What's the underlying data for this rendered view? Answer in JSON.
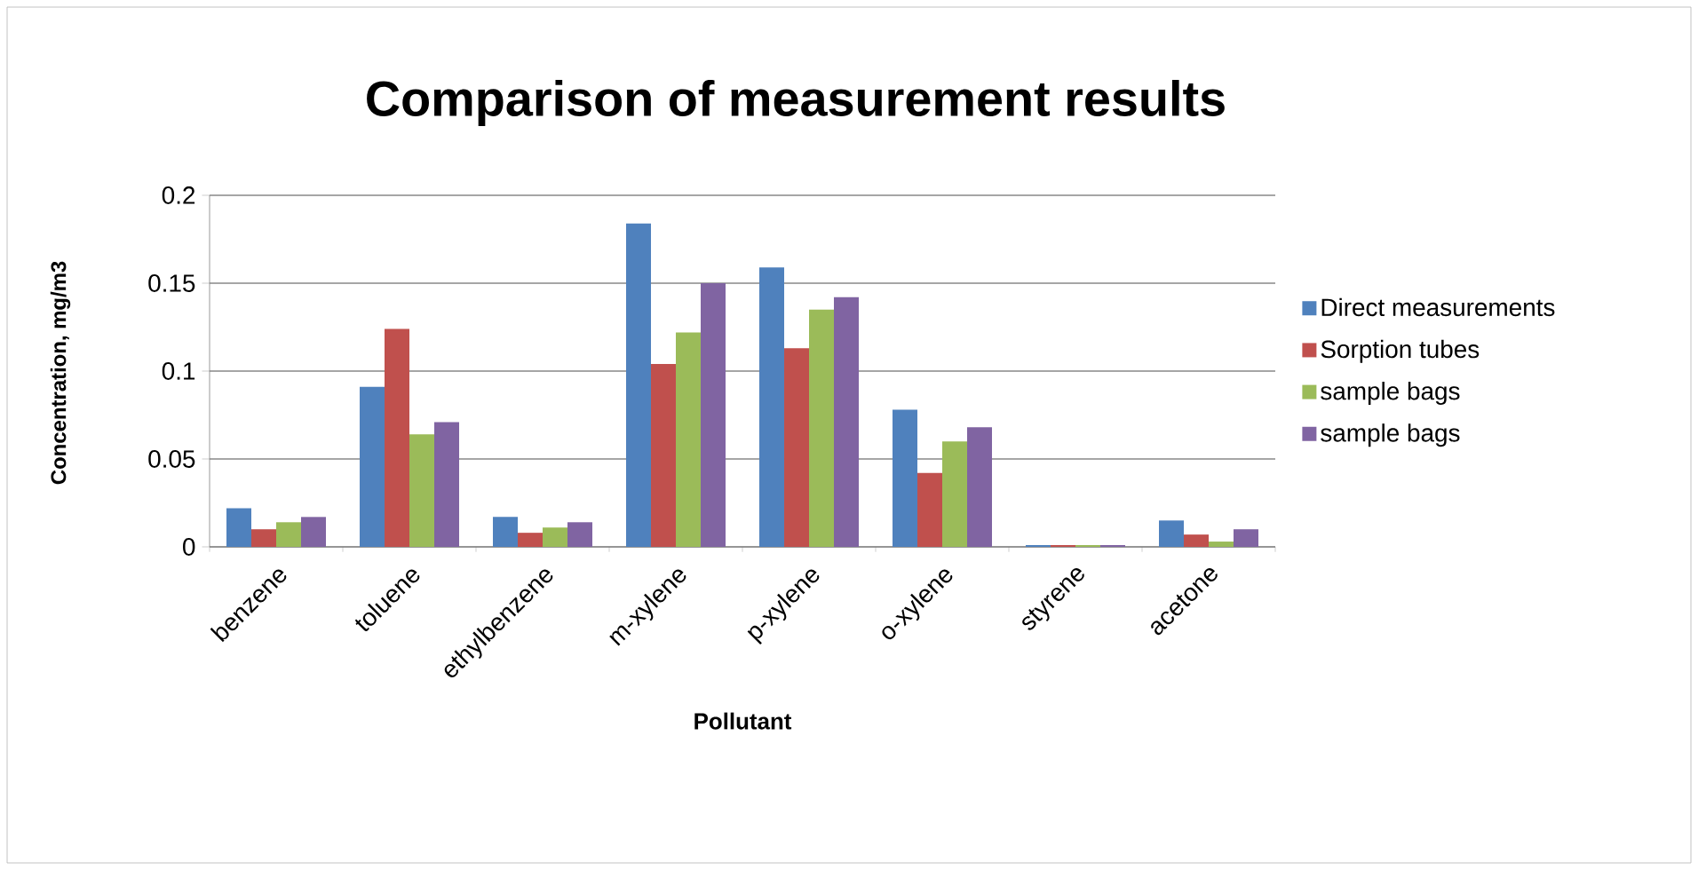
{
  "chart_data": {
    "type": "bar",
    "title": "Comparison of measurement results",
    "xlabel": "Pollutant",
    "ylabel": "Concentration, mg/m3",
    "categories": [
      "benzene",
      "toluene",
      "ethylbenzene",
      "m-xylene",
      "p-xylene",
      "o-xylene",
      "styrene",
      "acetone"
    ],
    "series": [
      {
        "name": "Direct measurements",
        "color": "#4f81bd",
        "values": [
          0.022,
          0.091,
          0.017,
          0.184,
          0.159,
          0.078,
          0.001,
          0.015
        ]
      },
      {
        "name": "Sorption tubes",
        "color": "#c0504d",
        "values": [
          0.01,
          0.124,
          0.008,
          0.104,
          0.113,
          0.042,
          0.001,
          0.007
        ]
      },
      {
        "name": "sample bags",
        "color": "#9bbb59",
        "values": [
          0.014,
          0.064,
          0.011,
          0.122,
          0.135,
          0.06,
          0.001,
          0.003
        ]
      },
      {
        "name": "sample bags",
        "color": "#8064a2",
        "values": [
          0.017,
          0.071,
          0.014,
          0.15,
          0.142,
          0.068,
          0.001,
          0.01
        ]
      }
    ],
    "ylim": [
      0,
      0.2
    ],
    "yticks": [
      0,
      0.05,
      0.1,
      0.15,
      0.2
    ],
    "grid": "y",
    "legend": "right"
  }
}
